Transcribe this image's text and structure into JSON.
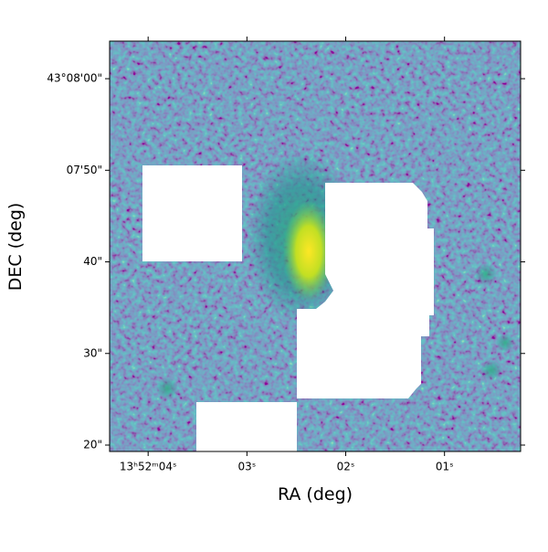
{
  "chart_data": {
    "type": "image",
    "xlabel": "RA (deg)",
    "ylabel": "DEC (deg)",
    "xlim": [
      208.018292,
      208.000958
    ],
    "ylim": [
      43.122028,
      43.134472
    ],
    "xticks": [
      {
        "value": 208.016667,
        "label": "13ʰ52ᵐ04ˢ"
      },
      {
        "value": 208.0125,
        "label": "03ˢ"
      },
      {
        "value": 208.008333,
        "label": "02ˢ"
      },
      {
        "value": 208.004167,
        "label": "01ˢ"
      }
    ],
    "yticks": [
      {
        "value": 43.133333,
        "label": "43°08'00\""
      },
      {
        "value": 43.130556,
        "label": "07'50\""
      },
      {
        "value": 43.127778,
        "label": "40\""
      },
      {
        "value": 43.125,
        "label": "30\""
      },
      {
        "value": 43.122222,
        "label": "20\""
      }
    ]
  }
}
